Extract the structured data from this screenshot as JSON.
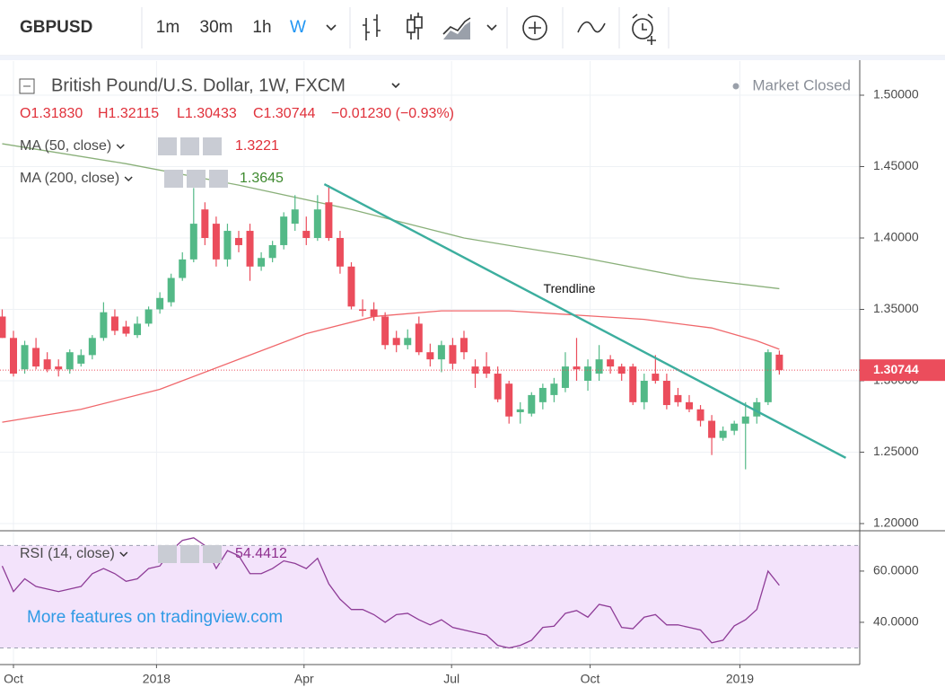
{
  "toolbar": {
    "symbol": "GBPUSD",
    "intervals": [
      "1m",
      "30m",
      "1h",
      "W"
    ]
  },
  "watermark": "More features on tradingview.com",
  "chart_data": [
    {
      "type": "candlestick",
      "title": "British Pound/U.S. Dollar, 1W, FXCM",
      "status": "Market Closed",
      "ohlc_header": [
        "O1.31830",
        "H1.32115",
        "L1.30433",
        "C1.30744",
        "−0.01230 (−0.93%)"
      ],
      "up_color": "#53b987",
      "down_color": "#eb4d5c",
      "x": [
        -1,
        0,
        1,
        2,
        3,
        4,
        5,
        6,
        7,
        8,
        9,
        10,
        11,
        12,
        13,
        14,
        15,
        16,
        17,
        18,
        19,
        20,
        21,
        22,
        23,
        24,
        25,
        26,
        27,
        28,
        29,
        30,
        31,
        32,
        33,
        34,
        35,
        36,
        37,
        38,
        39,
        40,
        41,
        42,
        43,
        44,
        45,
        46,
        47,
        48,
        49,
        50,
        51,
        52,
        53,
        54,
        55,
        56,
        57,
        58,
        59,
        60,
        61,
        62,
        63,
        64,
        65,
        66,
        67,
        68
      ],
      "open": [
        1.345,
        1.33,
        1.308,
        1.323,
        1.315,
        1.31,
        1.308,
        1.312,
        1.318,
        1.33,
        1.345,
        1.338,
        1.332,
        1.34,
        1.35,
        1.355,
        1.372,
        1.385,
        1.42,
        1.41,
        1.385,
        1.4,
        1.405,
        1.38,
        1.386,
        1.395,
        1.41,
        1.405,
        1.4,
        1.425,
        1.4,
        1.38,
        1.35,
        1.35,
        1.345,
        1.33,
        1.325,
        1.34,
        1.32,
        1.315,
        1.325,
        1.33,
        1.31,
        1.31,
        1.305,
        1.298,
        1.278,
        1.277,
        1.285,
        1.29,
        1.295,
        1.31,
        1.3,
        1.305,
        1.315,
        1.31,
        1.31,
        1.285,
        1.305,
        1.3,
        1.29,
        1.285,
        1.28,
        1.272,
        1.26,
        1.265,
        1.27,
        1.275,
        1.285,
        1.3183
      ],
      "high": [
        1.35,
        1.335,
        1.328,
        1.33,
        1.32,
        1.315,
        1.322,
        1.322,
        1.332,
        1.355,
        1.35,
        1.342,
        1.345,
        1.352,
        1.362,
        1.375,
        1.39,
        1.435,
        1.425,
        1.415,
        1.41,
        1.405,
        1.41,
        1.39,
        1.398,
        1.418,
        1.43,
        1.415,
        1.43,
        1.437,
        1.405,
        1.383,
        1.357,
        1.355,
        1.348,
        1.335,
        1.336,
        1.345,
        1.326,
        1.328,
        1.33,
        1.335,
        1.315,
        1.32,
        1.31,
        1.3,
        1.285,
        1.292,
        1.298,
        1.302,
        1.32,
        1.33,
        1.315,
        1.325,
        1.318,
        1.312,
        1.312,
        1.305,
        1.318,
        1.305,
        1.295,
        1.29,
        1.283,
        1.276,
        1.268,
        1.272,
        1.285,
        1.288,
        1.322,
        1.32115
      ],
      "low": [
        1.33,
        1.303,
        1.305,
        1.308,
        1.306,
        1.303,
        1.305,
        1.31,
        1.315,
        1.328,
        1.332,
        1.331,
        1.33,
        1.338,
        1.347,
        1.352,
        1.37,
        1.383,
        1.395,
        1.38,
        1.38,
        1.39,
        1.37,
        1.377,
        1.383,
        1.392,
        1.405,
        1.395,
        1.398,
        1.398,
        1.375,
        1.35,
        1.345,
        1.342,
        1.322,
        1.32,
        1.322,
        1.318,
        1.31,
        1.306,
        1.308,
        1.315,
        1.295,
        1.302,
        1.285,
        1.27,
        1.27,
        1.275,
        1.28,
        1.285,
        1.292,
        1.3,
        1.293,
        1.3,
        1.305,
        1.3,
        1.283,
        1.28,
        1.298,
        1.28,
        1.282,
        1.278,
        1.268,
        1.248,
        1.258,
        1.262,
        1.238,
        1.27,
        1.283,
        1.30433
      ],
      "close": [
        1.33,
        1.305,
        1.325,
        1.31,
        1.308,
        1.308,
        1.32,
        1.318,
        1.33,
        1.348,
        1.335,
        1.333,
        1.34,
        1.35,
        1.358,
        1.372,
        1.385,
        1.41,
        1.4,
        1.385,
        1.405,
        1.395,
        1.38,
        1.386,
        1.395,
        1.415,
        1.42,
        1.4,
        1.42,
        1.4,
        1.38,
        1.352,
        1.349,
        1.345,
        1.325,
        1.325,
        1.33,
        1.32,
        1.315,
        1.325,
        1.312,
        1.32,
        1.305,
        1.305,
        1.287,
        1.275,
        1.28,
        1.29,
        1.295,
        1.298,
        1.31,
        1.308,
        1.31,
        1.315,
        1.31,
        1.305,
        1.285,
        1.3,
        1.3,
        1.283,
        1.285,
        1.28,
        1.272,
        1.26,
        1.265,
        1.27,
        1.275,
        1.285,
        1.32,
        1.30744
      ],
      "xlim": [
        -1.195,
        75.14
      ],
      "xticks": [
        {
          "value": 0,
          "label": "Oct"
        },
        {
          "value": 12.7,
          "label": "2018"
        },
        {
          "value": 25.8,
          "label": "Apr"
        },
        {
          "value": 38.9,
          "label": "Jul"
        },
        {
          "value": 51.2,
          "label": "Oct"
        },
        {
          "value": 64.5,
          "label": "2019"
        }
      ],
      "ylim": [
        1.1956,
        1.5239
      ],
      "yticks": [
        {
          "value": 1.2,
          "label": "1.20000"
        },
        {
          "value": 1.25,
          "label": "1.25000"
        },
        {
          "value": 1.3,
          "label": "1.30000"
        },
        {
          "value": 1.35,
          "label": "1.35000"
        },
        {
          "value": 1.4,
          "label": "1.40000"
        },
        {
          "value": 1.45,
          "label": "1.45000"
        },
        {
          "value": 1.5,
          "label": "1.50000"
        }
      ],
      "grid": true,
      "last_price": {
        "value": 1.30744,
        "label": "1.30744"
      },
      "series": [
        {
          "name": "MA (50, close)",
          "value_label": "1.3221",
          "color": "#f0676b",
          "value_color": "#e0303a",
          "x": [
            -1,
            6,
            13,
            20,
            26,
            32,
            38,
            44,
            50,
            56,
            62,
            66,
            68
          ],
          "values": [
            1.271,
            1.28,
            1.294,
            1.315,
            1.333,
            1.345,
            1.349,
            1.349,
            1.346,
            1.343,
            1.337,
            1.328,
            1.3221
          ]
        },
        {
          "name": "MA (200, close)",
          "value_label": "1.3645",
          "color": "#8ab07a",
          "value_color": "#3e8a2f",
          "x": [
            -1,
            10,
            20,
            30,
            40,
            50,
            60,
            68
          ],
          "values": [
            1.466,
            1.452,
            1.437,
            1.42,
            1.4,
            1.387,
            1.372,
            1.3645
          ]
        }
      ],
      "annotations": [
        {
          "label": "Trendline",
          "color": "#3cae9e",
          "x": [
            27.6,
            73.9
          ],
          "values": [
            1.4377,
            1.246
          ]
        }
      ]
    },
    {
      "type": "line",
      "series": [
        {
          "name": "RSI (14, close)",
          "value_label": "54.4412",
          "color": "#8e3c97",
          "value_color": "#8e2e8e",
          "x": [
            -1,
            0,
            1,
            2,
            3,
            4,
            5,
            6,
            7,
            8,
            9,
            10,
            11,
            12,
            13,
            14,
            15,
            16,
            17,
            18,
            19,
            20,
            21,
            22,
            23,
            24,
            25,
            26,
            27,
            28,
            29,
            30,
            31,
            32,
            33,
            34,
            35,
            36,
            37,
            38,
            39,
            40,
            41,
            42,
            43,
            44,
            45,
            46,
            47,
            48,
            49,
            50,
            51,
            52,
            53,
            54,
            55,
            56,
            57,
            58,
            59,
            60,
            61,
            62,
            63,
            64,
            65,
            66,
            67,
            68
          ],
          "values": [
            62,
            52,
            57,
            54,
            53,
            52,
            53,
            54,
            59,
            61,
            59,
            56,
            57,
            61,
            62,
            68,
            72,
            73,
            70,
            61,
            68,
            66,
            59,
            59,
            61,
            64,
            63,
            61,
            65,
            55,
            49,
            45,
            45,
            43,
            40,
            43,
            43.5,
            41,
            39,
            41,
            38,
            37,
            36,
            35,
            31,
            30,
            31,
            33,
            38,
            38.5,
            43.5,
            44.6,
            42,
            47,
            46,
            38,
            37.5,
            42,
            43,
            39,
            39,
            38,
            37,
            32,
            33,
            38.6,
            41,
            45,
            60,
            54.4412
          ]
        }
      ],
      "ylim": [
        23.5,
        75.4
      ],
      "yticks": [
        {
          "value": 40,
          "label": "40.0000"
        },
        {
          "value": 60,
          "label": "60.0000"
        }
      ],
      "bands": [
        30,
        70
      ],
      "band_color": "#f3e3fb"
    }
  ]
}
